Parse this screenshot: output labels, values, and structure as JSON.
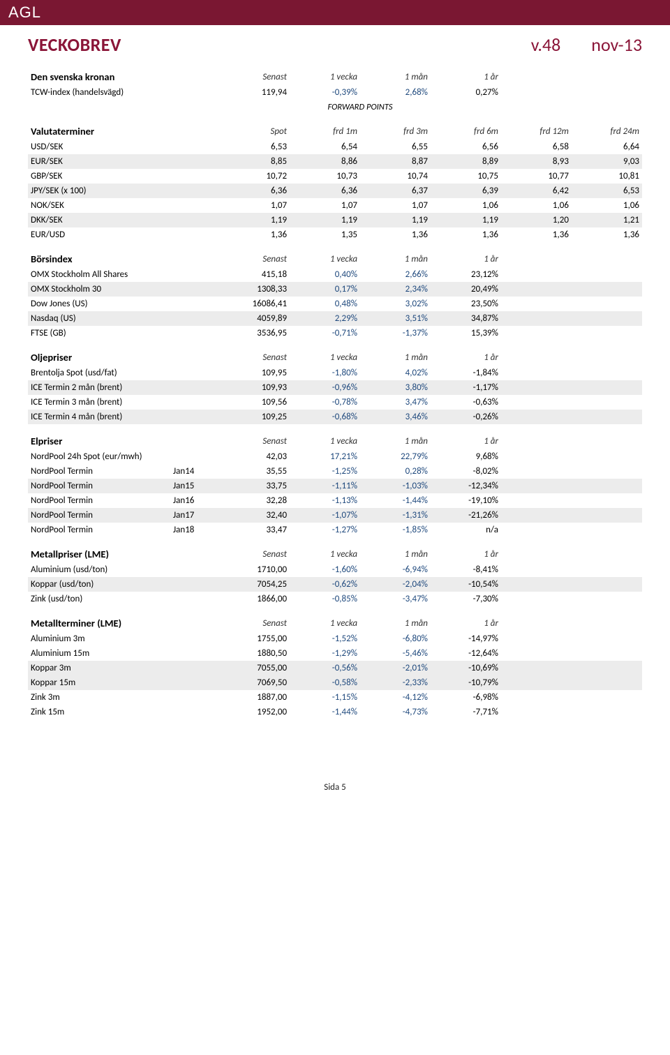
{
  "header": {
    "logo": "AGL",
    "title": "VECKOBREV",
    "week": "v.48",
    "month": "nov-13"
  },
  "krona": {
    "title": "Den svenska kronan",
    "headers": [
      "Senast",
      "1 vecka",
      "1 mån",
      "1 år"
    ],
    "rows": [
      {
        "label": "TCW-index (handelsvägd)",
        "vals": [
          "119,94",
          "-0,39%",
          "2,68%",
          "0,27%"
        ],
        "shade": false
      }
    ]
  },
  "forward_label": "FORWARD POINTS",
  "valuta": {
    "title": "Valutaterminer",
    "headers": [
      "Spot",
      "frd 1m",
      "frd 3m",
      "frd 6m",
      "frd 12m",
      "frd 24m"
    ],
    "rows": [
      {
        "label": "USD/SEK",
        "vals": [
          "6,53",
          "6,54",
          "6,55",
          "6,56",
          "6,58",
          "6,64"
        ],
        "shade": false
      },
      {
        "label": "EUR/SEK",
        "vals": [
          "8,85",
          "8,86",
          "8,87",
          "8,89",
          "8,93",
          "9,03"
        ],
        "shade": true
      },
      {
        "label": "GBP/SEK",
        "vals": [
          "10,72",
          "10,73",
          "10,74",
          "10,75",
          "10,77",
          "10,81"
        ],
        "shade": false
      },
      {
        "label": "JPY/SEK (x 100)",
        "vals": [
          "6,36",
          "6,36",
          "6,37",
          "6,39",
          "6,42",
          "6,53"
        ],
        "shade": true
      },
      {
        "label": "NOK/SEK",
        "vals": [
          "1,07",
          "1,07",
          "1,07",
          "1,06",
          "1,06",
          "1,06"
        ],
        "shade": false
      },
      {
        "label": "DKK/SEK",
        "vals": [
          "1,19",
          "1,19",
          "1,19",
          "1,19",
          "1,20",
          "1,21"
        ],
        "shade": true
      },
      {
        "label": "EUR/USD",
        "vals": [
          "1,36",
          "1,35",
          "1,36",
          "1,36",
          "1,36",
          "1,36"
        ],
        "shade": false
      }
    ]
  },
  "bors": {
    "title": "Börsindex",
    "headers": [
      "Senast",
      "1 vecka",
      "1 mån",
      "1 år"
    ],
    "rows": [
      {
        "label": "OMX Stockholm All Shares",
        "vals": [
          "415,18",
          "0,40%",
          "2,66%",
          "23,12%"
        ],
        "shade": false
      },
      {
        "label": "OMX Stockholm 30",
        "vals": [
          "1308,33",
          "0,17%",
          "2,34%",
          "20,49%"
        ],
        "shade": true
      },
      {
        "label": "Dow Jones (US)",
        "vals": [
          "16086,41",
          "0,48%",
          "3,02%",
          "23,50%"
        ],
        "shade": false
      },
      {
        "label": "Nasdaq (US)",
        "vals": [
          "4059,89",
          "2,29%",
          "3,51%",
          "34,87%"
        ],
        "shade": true
      },
      {
        "label": "FTSE (GB)",
        "vals": [
          "3536,95",
          "-0,71%",
          "-1,37%",
          "15,39%"
        ],
        "shade": false
      }
    ]
  },
  "olje": {
    "title": "Oljepriser",
    "headers": [
      "Senast",
      "1 vecka",
      "1 mån",
      "1 år"
    ],
    "rows": [
      {
        "label": "Brentolja Spot (usd/fat)",
        "vals": [
          "109,95",
          "-1,80%",
          "4,02%",
          "-1,84%"
        ],
        "shade": false
      },
      {
        "label": "ICE Termin 2 mån (brent)",
        "vals": [
          "109,93",
          "-0,96%",
          "3,80%",
          "-1,17%"
        ],
        "shade": true
      },
      {
        "label": "ICE Termin 3 mån (brent)",
        "vals": [
          "109,56",
          "-0,78%",
          "3,47%",
          "-0,63%"
        ],
        "shade": false
      },
      {
        "label": "ICE Termin 4 mån (brent)",
        "vals": [
          "109,25",
          "-0,68%",
          "3,46%",
          "-0,26%"
        ],
        "shade": true
      }
    ]
  },
  "el": {
    "title": "Elpriser",
    "headers": [
      "Senast",
      "1 vecka",
      "1 mån",
      "1 år"
    ],
    "rows": [
      {
        "label": "NordPool 24h Spot (eur/mwh)",
        "sub": "",
        "vals": [
          "42,03",
          "17,21%",
          "22,79%",
          "9,68%"
        ],
        "shade": false
      },
      {
        "label": "NordPool Termin",
        "sub": "Jan14",
        "vals": [
          "35,55",
          "-1,25%",
          "0,28%",
          "-8,02%"
        ],
        "shade": false
      },
      {
        "label": "NordPool Termin",
        "sub": "Jan15",
        "vals": [
          "33,75",
          "-1,11%",
          "-1,03%",
          "-12,34%"
        ],
        "shade": true
      },
      {
        "label": "NordPool Termin",
        "sub": "Jan16",
        "vals": [
          "32,28",
          "-1,13%",
          "-1,44%",
          "-19,10%"
        ],
        "shade": false
      },
      {
        "label": "NordPool Termin",
        "sub": "Jan17",
        "vals": [
          "32,40",
          "-1,07%",
          "-1,31%",
          "-21,26%"
        ],
        "shade": true
      },
      {
        "label": "NordPool Termin",
        "sub": "Jan18",
        "vals": [
          "33,47",
          "-1,27%",
          "-1,85%",
          "n/a"
        ],
        "shade": false
      }
    ]
  },
  "metallp": {
    "title": "Metallpriser (LME)",
    "headers": [
      "Senast",
      "1 vecka",
      "1 mån",
      "1 år"
    ],
    "rows": [
      {
        "label": "Aluminium (usd/ton)",
        "vals": [
          "1710,00",
          "-1,60%",
          "-6,94%",
          "-8,41%"
        ],
        "shade": false
      },
      {
        "label": "Koppar (usd/ton)",
        "vals": [
          "7054,25",
          "-0,62%",
          "-2,04%",
          "-10,54%"
        ],
        "shade": true
      },
      {
        "label": "Zink (usd/ton)",
        "vals": [
          "1866,00",
          "-0,85%",
          "-3,47%",
          "-7,30%"
        ],
        "shade": false
      }
    ]
  },
  "metallt": {
    "title": "Metallterminer (LME)",
    "headers": [
      "Senast",
      "1 vecka",
      "1 mån",
      "1 år"
    ],
    "rows": [
      {
        "label": "Aluminium 3m",
        "vals": [
          "1755,00",
          "-1,52%",
          "-6,80%",
          "-14,97%"
        ],
        "shade": false
      },
      {
        "label": "Aluminium 15m",
        "vals": [
          "1880,50",
          "-1,29%",
          "-5,46%",
          "-12,64%"
        ],
        "shade": false
      },
      {
        "label": "Koppar 3m",
        "vals": [
          "7055,00",
          "-0,56%",
          "-2,01%",
          "-10,69%"
        ],
        "shade": true
      },
      {
        "label": "Koppar 15m",
        "vals": [
          "7069,50",
          "-0,58%",
          "-2,33%",
          "-10,79%"
        ],
        "shade": true
      },
      {
        "label": "Zink 3m",
        "vals": [
          "1887,00",
          "-1,15%",
          "-4,12%",
          "-6,98%"
        ],
        "shade": false
      },
      {
        "label": "Zink 15m",
        "vals": [
          "1952,00",
          "-1,44%",
          "-4,73%",
          "-7,71%"
        ],
        "shade": false
      }
    ]
  },
  "footer": "Sida 5",
  "colors": {
    "brand_bar": "#7a1732",
    "brand_text": "#8a1538",
    "value_accent": "#1f497d",
    "shade_bg": "#ececec"
  }
}
